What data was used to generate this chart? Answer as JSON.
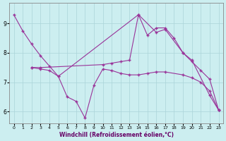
{
  "xlabel": "Windchill (Refroidissement éolien,°C)",
  "xlim": [
    -0.5,
    23.5
  ],
  "ylim": [
    5.6,
    9.7
  ],
  "xticks": [
    0,
    1,
    2,
    3,
    4,
    5,
    6,
    7,
    8,
    9,
    10,
    11,
    12,
    13,
    14,
    15,
    16,
    17,
    18,
    19,
    20,
    21,
    22,
    23
  ],
  "yticks": [
    6,
    7,
    8,
    9
  ],
  "background_color": "#cceef0",
  "grid_color": "#aad4d8",
  "line_color": "#993399",
  "series": [
    {
      "x": [
        0,
        1,
        2,
        3,
        4,
        5,
        14,
        16,
        17,
        19,
        20,
        21,
        22,
        23
      ],
      "y": [
        9.3,
        8.75,
        8.3,
        7.9,
        7.55,
        7.2,
        9.3,
        8.7,
        8.8,
        8.0,
        7.7,
        7.4,
        7.1,
        6.05
      ]
    },
    {
      "x": [
        2,
        3,
        4,
        5,
        6,
        7,
        8,
        9,
        10,
        11,
        12,
        13,
        14,
        15,
        16,
        17,
        19,
        20,
        21,
        22,
        23
      ],
      "y": [
        7.5,
        7.45,
        7.4,
        7.2,
        6.5,
        6.35,
        5.78,
        6.9,
        7.45,
        7.4,
        7.3,
        7.25,
        7.25,
        7.3,
        7.35,
        7.35,
        7.25,
        7.15,
        7.0,
        6.7,
        6.05
      ]
    },
    {
      "x": [
        2,
        3,
        10,
        11,
        12,
        13,
        14,
        15,
        16,
        17,
        18,
        19,
        20,
        22,
        23
      ],
      "y": [
        7.5,
        7.5,
        7.6,
        7.65,
        7.7,
        7.75,
        9.3,
        8.6,
        8.85,
        8.85,
        8.5,
        8.0,
        7.75,
        6.55,
        6.05
      ]
    }
  ]
}
